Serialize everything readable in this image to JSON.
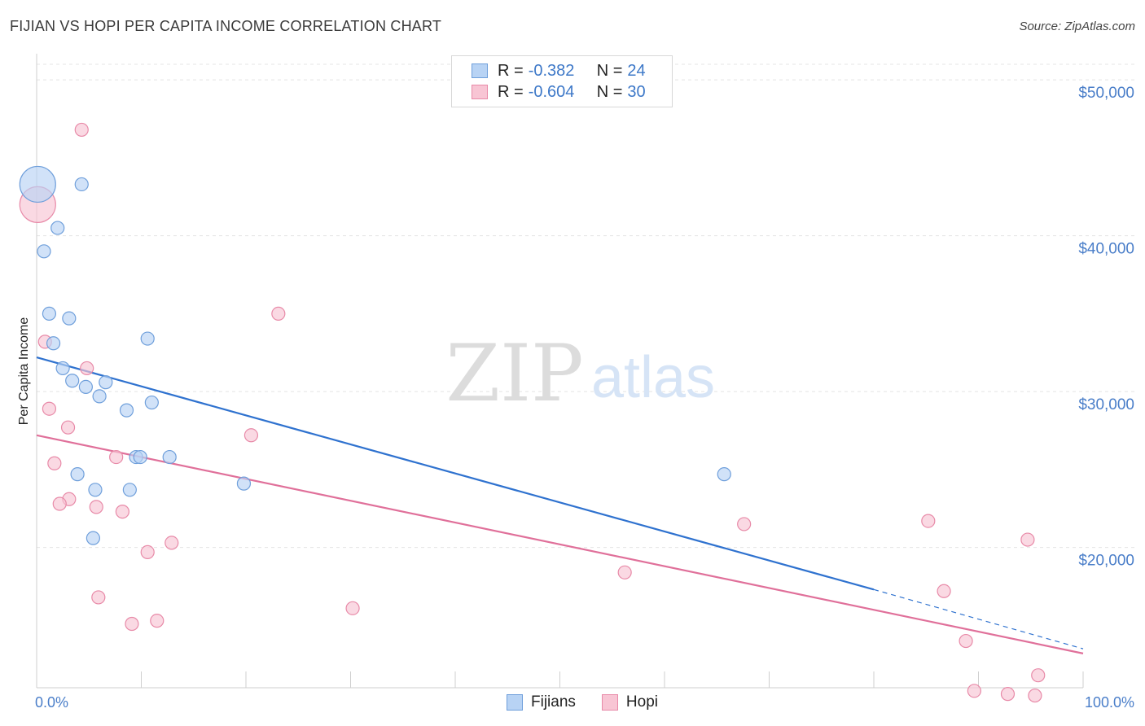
{
  "header": {
    "title": "FIJIAN VS HOPI PER CAPITA INCOME CORRELATION CHART",
    "source": "Source: ZipAtlas.com"
  },
  "watermark": {
    "zip": "ZIP",
    "atlas": "atlas"
  },
  "legend": {
    "fijians": {
      "r_label": "R =",
      "r_value": "-0.382",
      "n_label": "N =",
      "n_value": "24"
    },
    "hopi": {
      "r_label": "R =",
      "r_value": "-0.604",
      "n_label": "N =",
      "n_value": "30"
    }
  },
  "bottom_legend": {
    "fijians": "Fijians",
    "hopi": "Hopi"
  },
  "colors": {
    "fijians_fill": "#b8d3f4",
    "fijians_stroke": "#6f9fdb",
    "fijians_line": "#2f72cf",
    "hopi_fill": "#f8c5d4",
    "hopi_stroke": "#e88aa8",
    "hopi_line": "#e0709a",
    "tick_text": "#4a7ec9",
    "grid": "#e4e4e4"
  },
  "chart_data": {
    "type": "scatter",
    "title": "FIJIAN VS HOPI PER CAPITA INCOME CORRELATION CHART",
    "xlabel": "",
    "ylabel": "Per Capita Income",
    "xlim": [
      0,
      100
    ],
    "ylim": [
      11000,
      51000
    ],
    "x_tick_labels": [
      "0.0%",
      "100.0%"
    ],
    "y_ticks": [
      {
        "value": 20000,
        "label": "$20,000"
      },
      {
        "value": 30000,
        "label": "$30,000"
      },
      {
        "value": 40000,
        "label": "$40,000"
      },
      {
        "value": 50000,
        "label": "$50,000"
      }
    ],
    "series": [
      {
        "name": "Fijians",
        "r": -0.382,
        "n": 24,
        "points": [
          {
            "x": 0.1,
            "y": 43300,
            "big": true
          },
          {
            "x": 4.3,
            "y": 43300
          },
          {
            "x": 2.0,
            "y": 40500
          },
          {
            "x": 0.7,
            "y": 39000
          },
          {
            "x": 1.2,
            "y": 35000
          },
          {
            "x": 3.1,
            "y": 34700
          },
          {
            "x": 1.6,
            "y": 33100
          },
          {
            "x": 10.6,
            "y": 33400
          },
          {
            "x": 2.5,
            "y": 31500
          },
          {
            "x": 3.4,
            "y": 30700
          },
          {
            "x": 6.6,
            "y": 30600
          },
          {
            "x": 4.7,
            "y": 30300
          },
          {
            "x": 6.0,
            "y": 29700
          },
          {
            "x": 11.0,
            "y": 29300
          },
          {
            "x": 8.6,
            "y": 28800
          },
          {
            "x": 9.5,
            "y": 25800
          },
          {
            "x": 9.9,
            "y": 25800
          },
          {
            "x": 12.7,
            "y": 25800
          },
          {
            "x": 3.9,
            "y": 24700
          },
          {
            "x": 65.7,
            "y": 24700
          },
          {
            "x": 19.8,
            "y": 24100
          },
          {
            "x": 5.6,
            "y": 23700
          },
          {
            "x": 8.9,
            "y": 23700
          },
          {
            "x": 5.4,
            "y": 20600
          }
        ],
        "trend": {
          "x0": 0,
          "y0": 32200,
          "x1": 80,
          "y1": 17300,
          "dash_x1": 100,
          "dash_y1": 13500
        }
      },
      {
        "name": "Hopi",
        "r": -0.604,
        "n": 30,
        "points": [
          {
            "x": 0.1,
            "y": 42000,
            "big": true
          },
          {
            "x": 4.3,
            "y": 46800
          },
          {
            "x": 23.1,
            "y": 35000
          },
          {
            "x": 0.8,
            "y": 33200
          },
          {
            "x": 4.8,
            "y": 31500
          },
          {
            "x": 1.2,
            "y": 28900
          },
          {
            "x": 3.0,
            "y": 27700
          },
          {
            "x": 20.5,
            "y": 27200
          },
          {
            "x": 7.6,
            "y": 25800
          },
          {
            "x": 1.7,
            "y": 25400
          },
          {
            "x": 3.1,
            "y": 23100
          },
          {
            "x": 2.2,
            "y": 22800
          },
          {
            "x": 5.7,
            "y": 22600
          },
          {
            "x": 8.2,
            "y": 22300
          },
          {
            "x": 67.6,
            "y": 21500
          },
          {
            "x": 85.2,
            "y": 21700
          },
          {
            "x": 94.7,
            "y": 20500
          },
          {
            "x": 12.9,
            "y": 20300
          },
          {
            "x": 10.6,
            "y": 19700
          },
          {
            "x": 56.2,
            "y": 18400
          },
          {
            "x": 86.7,
            "y": 17200
          },
          {
            "x": 5.9,
            "y": 16800
          },
          {
            "x": 30.2,
            "y": 16100
          },
          {
            "x": 11.5,
            "y": 15300
          },
          {
            "x": 9.1,
            "y": 15100
          },
          {
            "x": 88.8,
            "y": 14000
          },
          {
            "x": 95.7,
            "y": 11800
          },
          {
            "x": 89.6,
            "y": 10800
          },
          {
            "x": 92.8,
            "y": 10600
          },
          {
            "x": 95.4,
            "y": 10500
          }
        ],
        "trend": {
          "x0": 0,
          "y0": 27200,
          "x1": 100,
          "y1": 13200
        }
      }
    ]
  }
}
